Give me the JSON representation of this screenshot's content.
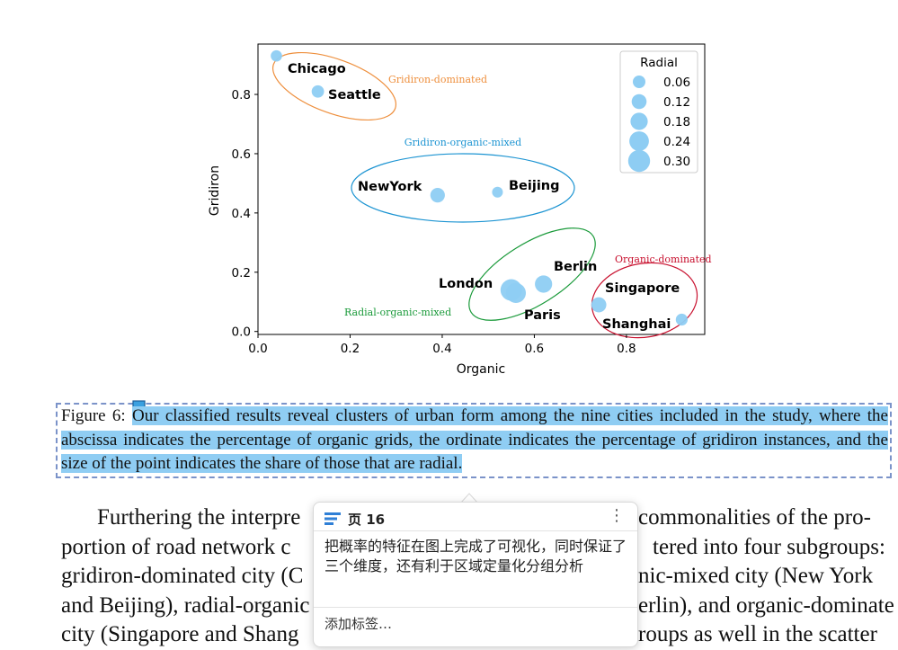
{
  "chart_data": {
    "type": "scatter",
    "xlabel": "Organic",
    "ylabel": "Gridiron",
    "xlim": [
      0.0,
      0.97
    ],
    "ylim": [
      -0.01,
      0.97
    ],
    "xticks": [
      "0.0",
      "0.2",
      "0.4",
      "0.6",
      "0.8"
    ],
    "yticks": [
      "0.0",
      "0.2",
      "0.4",
      "0.6",
      "0.8"
    ],
    "grid": false,
    "legend": {
      "title": "Radial",
      "placement": "top-right",
      "sizes": [
        "0.06",
        "0.12",
        "0.18",
        "0.24",
        "0.30"
      ]
    },
    "point_color": "#8ecdf3",
    "points": [
      {
        "label": "Chicago",
        "x": 0.04,
        "y": 0.93,
        "radial": 0.06
      },
      {
        "label": "Seattle",
        "x": 0.13,
        "y": 0.81,
        "radial": 0.08
      },
      {
        "label": "NewYork",
        "x": 0.39,
        "y": 0.46,
        "radial": 0.12
      },
      {
        "label": "Beijing",
        "x": 0.52,
        "y": 0.47,
        "radial": 0.05
      },
      {
        "label": "Berlin",
        "x": 0.62,
        "y": 0.16,
        "radial": 0.17
      },
      {
        "label": "London",
        "x": 0.55,
        "y": 0.14,
        "radial": 0.25
      },
      {
        "label": "Paris",
        "x": 0.56,
        "y": 0.13,
        "radial": 0.22
      },
      {
        "label": "Singapore",
        "x": 0.74,
        "y": 0.09,
        "radial": 0.13
      },
      {
        "label": "Shanghai",
        "x": 0.92,
        "y": 0.04,
        "radial": 0.07
      }
    ],
    "clusters": [
      {
        "label": "Gridiron-dominated",
        "color": "#ee8f3d"
      },
      {
        "label": "Gridiron-organic-mixed",
        "color": "#1c94d2"
      },
      {
        "label": "Radial-organic-mixed",
        "color": "#1a9a3a"
      },
      {
        "label": "Organic-dominated",
        "color": "#c8102e"
      }
    ]
  },
  "caption": {
    "prefix": "Figure 6: ",
    "text": "Our classified results reveal clusters of urban form among the nine cities included in the study, where the abscissa indicates the percentage of organic grids, the ordinate indicates the percentage of gridiron instances, and the size of the point indicates the share of those that are radial.",
    "highlight_color": "#8fcdf3"
  },
  "body_lines": [
    "Furthering the interpre",
    "portion of road network c",
    "gridiron-dominated city (C",
    "and Beijing), radial-organic",
    "city (Singapore and Shang"
  ],
  "body_lines_right": [
    "commonalities of the pro-",
    "tered into four subgroups:",
    "nic-mixed city (New York",
    "erlin), and organic-dominate",
    "roups as well in the scatter"
  ],
  "popup": {
    "page_label": "页 16",
    "note": "把概率的特征在图上完成了可视化，同时保证了三个维度，还有利于区域定量化分组分析",
    "add_tag": "添加标签…"
  }
}
